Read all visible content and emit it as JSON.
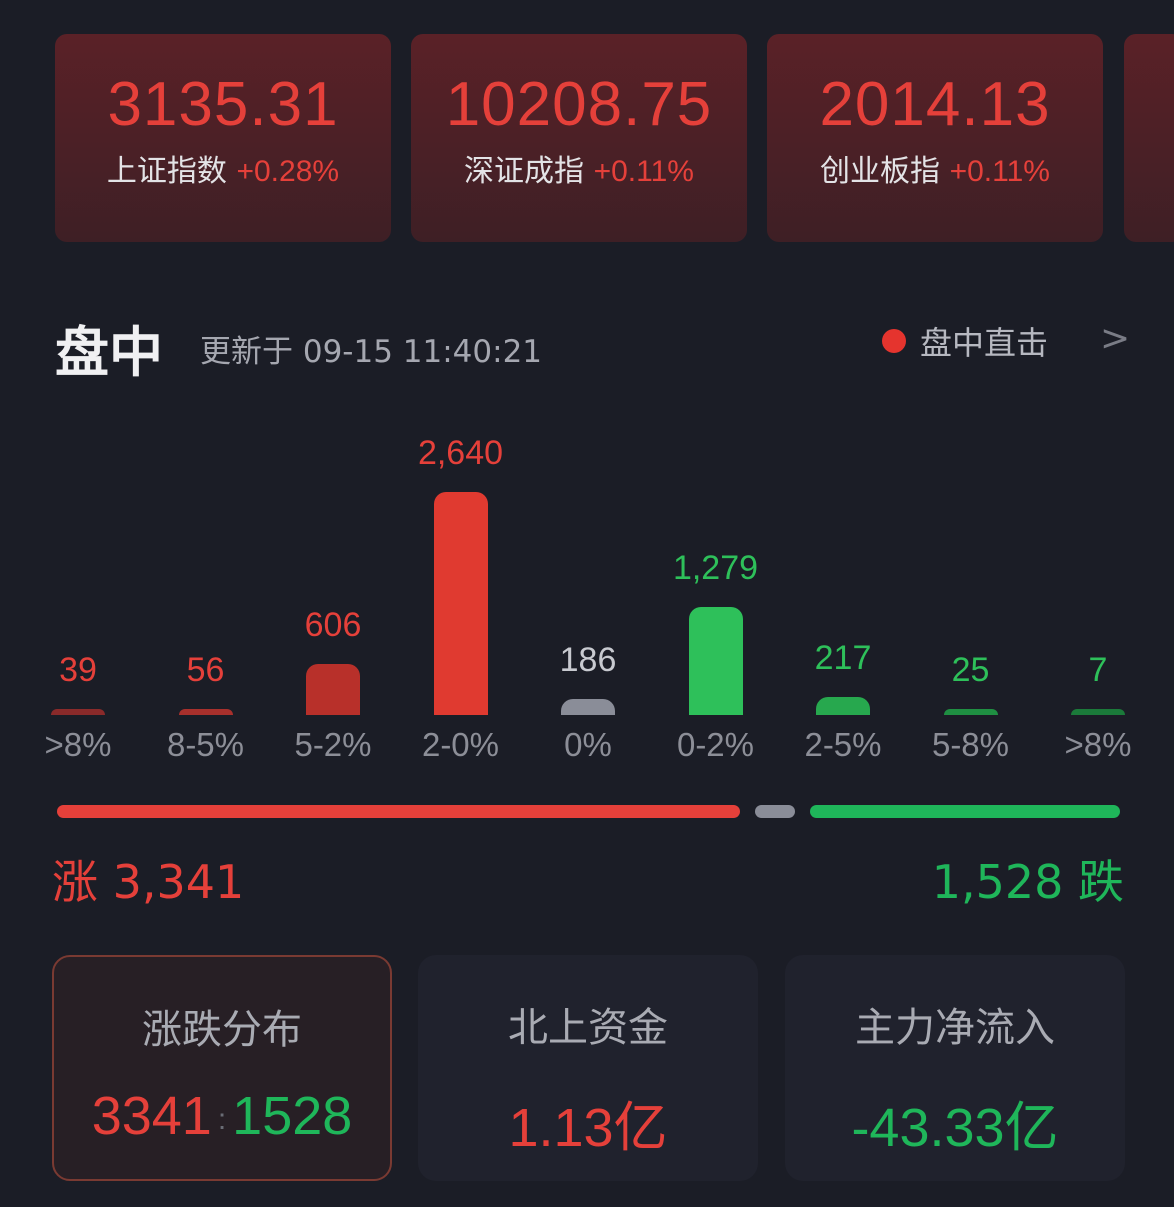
{
  "indices": [
    {
      "value": "3135.31",
      "name": "上证指数",
      "change": "+0.28%"
    },
    {
      "value": "10208.75",
      "name": "深证成指",
      "change": "+0.11%"
    },
    {
      "value": "2014.13",
      "name": "创业板指",
      "change": "+0.11%"
    }
  ],
  "section": {
    "title": "盘中",
    "updated": "更新于 09-15 11:40:21",
    "live_label": "盘中直击",
    "live_chevron": ">"
  },
  "chart_data": {
    "type": "bar",
    "categories": [
      ">8%",
      "8-5%",
      "5-2%",
      "2-0%",
      "0%",
      "0-2%",
      "2-5%",
      "5-8%",
      ">8%"
    ],
    "values": [
      39,
      56,
      606,
      2640,
      186,
      1279,
      217,
      25,
      7
    ],
    "labels": [
      "39",
      "56",
      "606",
      "2,640",
      "186",
      "1,279",
      "217",
      "25",
      "7"
    ],
    "colors": [
      "#8a2a2a",
      "#a8302c",
      "#b8302a",
      "#e03a30",
      "#8a8d98",
      "#2ec05a",
      "#27a84e",
      "#1f8f42",
      "#1b7a3a"
    ],
    "label_colors": [
      "#e5403a",
      "#e5403a",
      "#e5403a",
      "#e5403a",
      "#c8cad0",
      "#2ec05a",
      "#2ec05a",
      "#2ec05a",
      "#2ec05a"
    ]
  },
  "breadth": {
    "up_label": "涨 3,341",
    "down_label": "1,528 跌",
    "up": 3341,
    "flat": 186,
    "down": 1528,
    "up_color": "#e5403a",
    "flat_color": "#8a8d98",
    "down_color": "#1fb65a"
  },
  "cards": [
    {
      "title": "涨跌分布",
      "up": "3341",
      "sep": ":",
      "down": "1528"
    },
    {
      "title": "北上资金",
      "value": "1.13亿"
    },
    {
      "title": "主力净流入",
      "value": "-43.33亿"
    }
  ]
}
